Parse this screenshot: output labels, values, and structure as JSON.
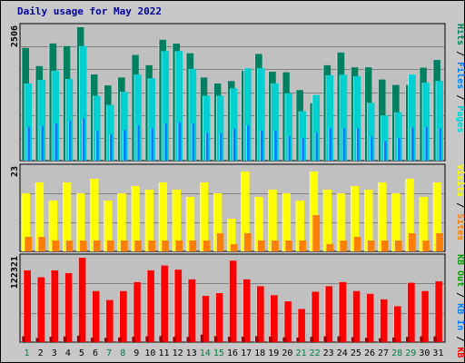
{
  "title": "Daily usage for May 2022",
  "chart_data": [
    {
      "type": "bar",
      "name": "hits-files-pages",
      "scale_label": "2506",
      "ylim": [
        0,
        2506
      ],
      "legend": [
        {
          "label": "Pages",
          "color": "#00d0d0"
        },
        {
          "label": "Files",
          "color": "#0080ff"
        },
        {
          "label": "Hits",
          "color": "#008060"
        }
      ],
      "x": [
        "1",
        "2",
        "3",
        "4",
        "5",
        "6",
        "7",
        "8",
        "9",
        "10",
        "11",
        "12",
        "13",
        "14",
        "15",
        "16",
        "17",
        "18",
        "19",
        "20",
        "21",
        "22",
        "23",
        "24",
        "25",
        "26",
        "27",
        "28",
        "29",
        "30",
        "31"
      ],
      "weekend": [
        "1",
        "7",
        "8",
        "14",
        "15",
        "21",
        "22",
        "28",
        "29"
      ],
      "series": [
        {
          "name": "Hits",
          "color": "#008060",
          "values": [
            2117,
            1776,
            2201,
            2151,
            2506,
            1618,
            1413,
            1561,
            1985,
            1792,
            2270,
            2198,
            2015,
            1561,
            1449,
            1495,
            1688,
            2003,
            1670,
            1660,
            1324,
            1080,
            1792,
            2031,
            1753,
            1753,
            1524,
            1421,
            1421,
            1747,
            1891
          ]
        },
        {
          "name": "Files",
          "color": "#0080ff",
          "values": [
            634,
            649,
            696,
            752,
            795,
            556,
            497,
            575,
            663,
            607,
            700,
            719,
            696,
            525,
            512,
            596,
            663,
            563,
            556,
            460,
            419,
            530,
            607,
            611,
            607,
            453,
            370,
            424,
            619,
            632,
            612
          ]
        },
        {
          "name": "Pages",
          "color": "#00d0d0",
          "values": [
            1449,
            1520,
            1689,
            1535,
            2151,
            1218,
            1048,
            1294,
            1618,
            1547,
            2057,
            2057,
            1725,
            1221,
            1221,
            1359,
            1736,
            1736,
            1453,
            1263,
            930,
            1233,
            1604,
            1615,
            1588,
            1087,
            849,
            909,
            1617,
            1465,
            1498
          ]
        }
      ]
    },
    {
      "type": "bar",
      "name": "visits-sites",
      "scale_label": "23",
      "ylim": [
        0,
        23
      ],
      "legend": [
        {
          "label": "Sites",
          "color": "#ff8000"
        },
        {
          "label": "Visits",
          "color": "#ffff00"
        }
      ],
      "x": [
        "1",
        "2",
        "3",
        "4",
        "5",
        "6",
        "7",
        "8",
        "9",
        "10",
        "11",
        "12",
        "13",
        "14",
        "15",
        "16",
        "17",
        "18",
        "19",
        "20",
        "21",
        "22",
        "23",
        "24",
        "25",
        "26",
        "27",
        "28",
        "29",
        "30",
        "31"
      ],
      "series": [
        {
          "name": "Visits",
          "color": "#ffff00",
          "values": [
            16,
            19,
            14,
            19,
            16,
            20,
            14,
            16,
            18,
            17,
            19,
            17,
            15,
            19,
            16,
            9,
            22,
            15,
            17,
            16,
            14,
            22,
            17,
            16,
            18,
            17,
            19,
            16,
            20,
            15,
            19
          ]
        },
        {
          "name": "Sites",
          "color": "#ff8000",
          "values": [
            4,
            4,
            3,
            3,
            3,
            3,
            3,
            3,
            3,
            3,
            3,
            3,
            3,
            3,
            5,
            2,
            5,
            3,
            3,
            3,
            3,
            10,
            2,
            3,
            4,
            3,
            3,
            3,
            5,
            3,
            5
          ]
        }
      ]
    },
    {
      "type": "bar",
      "name": "kbytes",
      "scale_label": "122321",
      "ylim": [
        0,
        122321
      ],
      "legend": [
        {
          "label": "KB F",
          "color": "#ff0000"
        },
        {
          "label": "KB In",
          "color": "#0080ff"
        },
        {
          "label": "KB Out",
          "color": "#00a000"
        }
      ],
      "x": [
        "1",
        "2",
        "3",
        "4",
        "5",
        "6",
        "7",
        "8",
        "9",
        "10",
        "11",
        "12",
        "13",
        "14",
        "15",
        "16",
        "17",
        "18",
        "19",
        "20",
        "21",
        "22",
        "23",
        "24",
        "25",
        "26",
        "27",
        "28",
        "29",
        "30",
        "31"
      ],
      "series": [
        {
          "name": "KB F",
          "color": "#ff0000",
          "values": [
            104000,
            94000,
            104000,
            100000,
            122321,
            74000,
            61000,
            74000,
            87000,
            104000,
            111000,
            105000,
            91000,
            67000,
            71000,
            118000,
            91000,
            81000,
            68000,
            59000,
            48000,
            73000,
            81000,
            87000,
            74000,
            70000,
            62000,
            52000,
            86000,
            74000,
            88000
          ]
        },
        {
          "name": "KB In",
          "color": "#0080ff",
          "values": [
            5800,
            3300,
            5100,
            5500,
            6700,
            3700,
            3600,
            4300,
            5200,
            5900,
            6100,
            5000,
            4900,
            8200,
            6100,
            5200,
            5300,
            6100,
            5500,
            4400,
            4000,
            5000,
            5800,
            5900,
            4500,
            3500,
            2900,
            4200,
            5000,
            5700,
            5700
          ]
        },
        {
          "name": "KB Out",
          "color": "#00a000",
          "values": [
            0,
            0,
            0,
            0,
            0,
            0,
            0,
            0,
            0,
            0,
            0,
            0,
            0,
            0,
            0,
            0,
            0,
            0,
            0,
            0,
            0,
            0,
            0,
            0,
            0,
            0,
            0,
            0,
            0,
            0,
            0
          ]
        }
      ]
    }
  ]
}
